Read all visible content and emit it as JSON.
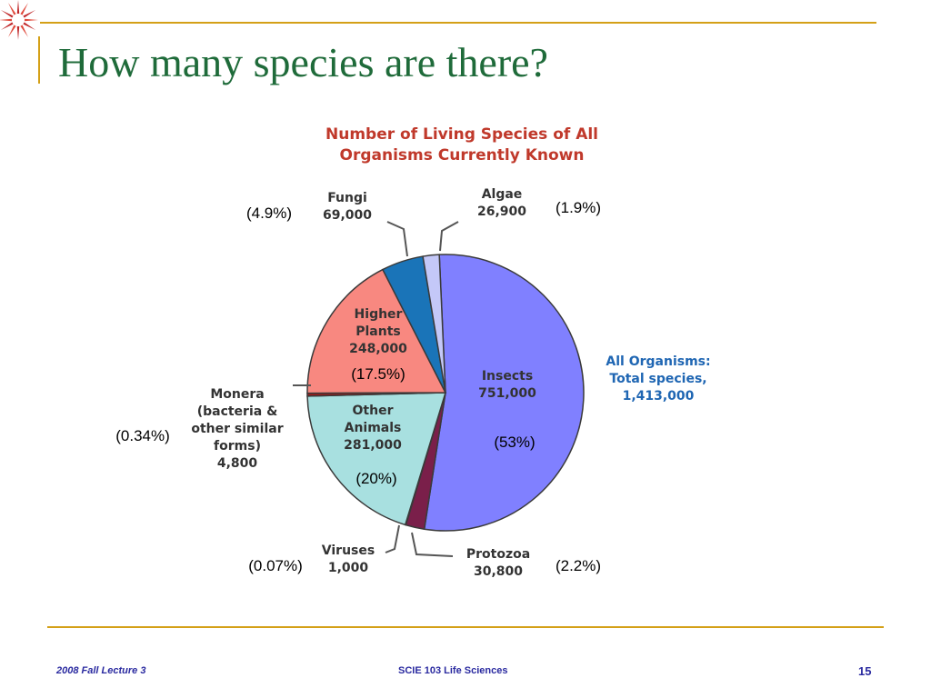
{
  "slide": {
    "title": "How many species are there?",
    "footer_left": "2008 Fall Lecture 3",
    "footer_center": "SCIE 103 Life Sciences",
    "page_number": "15"
  },
  "colors": {
    "title": "#1f6b3a",
    "rule": "#d4a017",
    "footer": "#2a2aa0",
    "chart_title": "#c0392b",
    "total_label": "#1f66b3"
  },
  "chart_data": {
    "type": "pie",
    "title_lines": [
      "Number of Living Species of All",
      "Organisms Currently Known"
    ],
    "total_label_lines": [
      "All Organisms:",
      "Total species,",
      "1,413,000"
    ],
    "slices": [
      {
        "name": "Insects",
        "value": 751000,
        "value_label": "751,000",
        "percent_label": "(53%)",
        "color": "#8080ff",
        "label_lines": [
          "Insects",
          "751,000"
        ]
      },
      {
        "name": "Protozoa",
        "value": 30800,
        "value_label": "30,800",
        "percent_label": "(2.2%)",
        "color": "#7a1f4a",
        "label_lines": [
          "Protozoa",
          "30,800"
        ]
      },
      {
        "name": "Viruses",
        "value": 1000,
        "value_label": "1,000",
        "percent_label": "(0.07%)",
        "color": "#1a1a1a",
        "label_lines": [
          "Viruses",
          "1,000"
        ]
      },
      {
        "name": "Other Animals",
        "value": 281000,
        "value_label": "281,000",
        "percent_label": "(20%)",
        "color": "#a8e0e0",
        "label_lines": [
          "Other",
          "Animals",
          "281,000"
        ]
      },
      {
        "name": "Monera",
        "value": 4800,
        "value_label": "4,800",
        "percent_label": "(0.34%)",
        "color": "#a01818",
        "label_lines": [
          "Monera",
          "(bacteria &",
          "other similar",
          "forms)",
          "4,800"
        ]
      },
      {
        "name": "Higher Plants",
        "value": 248000,
        "value_label": "248,000",
        "percent_label": "(17.5%)",
        "color": "#f88880",
        "label_lines": [
          "Higher",
          "Plants",
          "248,000"
        ]
      },
      {
        "name": "Fungi",
        "value": 69000,
        "value_label": "69,000",
        "percent_label": "(4.9%)",
        "color": "#1a74b8",
        "label_lines": [
          "Fungi",
          "69,000"
        ]
      },
      {
        "name": "Algae",
        "value": 26900,
        "value_label": "26,900",
        "percent_label": "(1.9%)",
        "color": "#c4c8f8",
        "label_lines": [
          "Algae",
          "26,900"
        ]
      }
    ],
    "legend": "none"
  }
}
